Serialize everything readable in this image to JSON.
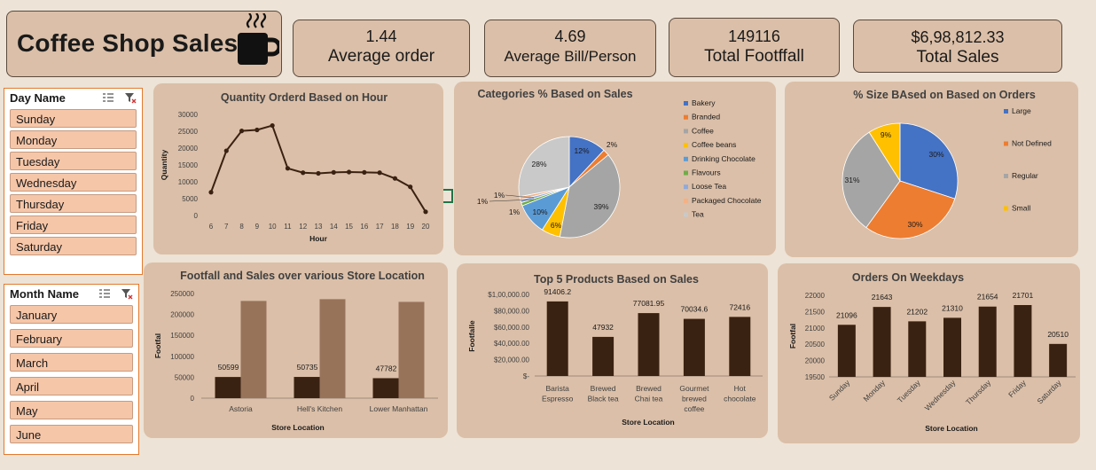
{
  "header": {
    "title": "Coffee Shop Sales",
    "icon": "coffee-mug-icon"
  },
  "kpis": [
    {
      "value": "1.44",
      "label": "Average order"
    },
    {
      "value": "4.69",
      "label": "Average Bill/Person"
    },
    {
      "value": "149116",
      "label": "Total Footffall"
    },
    {
      "value": "$6,98,812.33",
      "label": "Total Sales"
    }
  ],
  "slicers": {
    "day": {
      "title": "Day Name",
      "items": [
        "Sunday",
        "Monday",
        "Tuesday",
        "Wednesday",
        "Thursday",
        "Friday",
        "Saturday"
      ]
    },
    "month": {
      "title": "Month Name",
      "items": [
        "January",
        "February",
        "March",
        "April",
        "May",
        "June"
      ]
    }
  },
  "colors": {
    "dark_bar": "#3a2212",
    "light_bar": "#97735a",
    "panel": "#dbbfa8",
    "line": "#3a2212"
  },
  "chart_data": [
    {
      "id": "hourly",
      "type": "line",
      "title": "Quantity Orderd Based on Hour",
      "xlabel": "Hour",
      "ylabel": "Quantity",
      "x": [
        6,
        7,
        8,
        9,
        10,
        11,
        12,
        13,
        14,
        15,
        16,
        17,
        18,
        19,
        20
      ],
      "values": [
        6900,
        19200,
        25100,
        25400,
        26700,
        14000,
        12700,
        12500,
        12800,
        12900,
        12800,
        12700,
        11000,
        8500,
        1100
      ],
      "ylim": [
        0,
        30000
      ],
      "yticks": [
        0,
        5000,
        10000,
        15000,
        20000,
        25000,
        30000
      ],
      "grid": false
    },
    {
      "id": "categories",
      "type": "pie",
      "title": "Categories % Based on Sales",
      "labels": [
        "Bakery",
        "Branded",
        "Coffee",
        "Coffee beans",
        "Drinking Chocolate",
        "Flavours",
        "Loose Tea",
        "Packaged Chocolate",
        "Tea"
      ],
      "values": [
        12,
        2,
        39,
        6,
        10,
        1,
        1,
        1,
        28
      ],
      "data_labels": [
        "12%",
        "2%",
        "39%",
        "6%",
        "10%",
        "1%",
        "1%",
        "1%",
        "28%"
      ],
      "colors": [
        "#4472c4",
        "#ed7d31",
        "#a5a5a5",
        "#ffc000",
        "#5b9bd5",
        "#70ad47",
        "#8faadc",
        "#f4b183",
        "#c9c9c9"
      ],
      "legend": "right"
    },
    {
      "id": "sizes",
      "type": "pie",
      "title": "% Size BAsed on Based on Orders",
      "labels": [
        "Large",
        "Not Defined",
        "Regular",
        "Small"
      ],
      "values": [
        30,
        30,
        31,
        9
      ],
      "data_labels": [
        "30%",
        "30%",
        "31%",
        "9%"
      ],
      "colors": [
        "#4472c4",
        "#ed7d31",
        "#a5a5a5",
        "#ffc000"
      ],
      "legend": "right"
    },
    {
      "id": "locations",
      "type": "bar",
      "title": "Footfall and Sales over various Store Location",
      "xlabel": "Store Location",
      "ylabel": "Footfal",
      "categories": [
        "Astoria",
        "Hell's Kitchen",
        "Lower Manhattan"
      ],
      "series": [
        {
          "values": [
            50599,
            50735,
            47782
          ],
          "labels": [
            "50599",
            "50735",
            "47782"
          ]
        },
        {
          "values": [
            232243,
            236511,
            230057
          ]
        }
      ],
      "ylim": [
        0,
        250000
      ],
      "yticks": [
        0,
        50000,
        100000,
        150000,
        200000,
        250000
      ]
    },
    {
      "id": "products",
      "type": "bar",
      "title": "Top 5 Products Based on Sales",
      "xlabel": "Store Location",
      "ylabel": "Footfalle",
      "categories": [
        [
          "Barista",
          "Espresso"
        ],
        [
          "Brewed",
          "Black tea"
        ],
        [
          "Brewed",
          "Chai tea"
        ],
        [
          "Gourmet",
          "brewed",
          "coffee"
        ],
        [
          "Hot",
          "chocolate"
        ]
      ],
      "values": [
        91406.2,
        47932,
        77081.95,
        70034.6,
        72416
      ],
      "data_labels": [
        "91406.2",
        "47932",
        "77081.95",
        "70034.6",
        "72416"
      ],
      "ylim": [
        0,
        100000
      ],
      "yticks": [
        0,
        20000,
        40000,
        60000,
        80000,
        100000
      ],
      "ytick_labels": [
        "$-",
        "$20,000.00",
        "$40,000.00",
        "$60,000.00",
        "$80,000.00",
        "$1,00,000.00"
      ]
    },
    {
      "id": "weekdays",
      "type": "bar",
      "title": "Orders On Weekdays",
      "xlabel": "Store Location",
      "ylabel": "Footfal",
      "categories": [
        "Sunday",
        "Monday",
        "Tuesday",
        "Wednesday",
        "Thursday",
        "Friday",
        "Saturday"
      ],
      "values": [
        21096,
        21643,
        21202,
        21310,
        21654,
        21701,
        20510
      ],
      "data_labels": [
        "21096",
        "21643",
        "21202",
        "21310",
        "21654",
        "21701",
        "20510"
      ],
      "ylim": [
        19500,
        22000
      ],
      "yticks": [
        19500,
        20000,
        20500,
        21000,
        21500,
        22000
      ]
    }
  ]
}
